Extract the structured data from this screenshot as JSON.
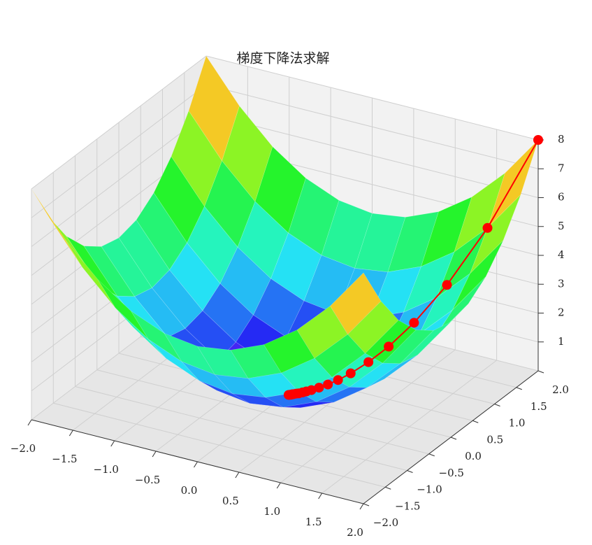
{
  "chart_data": {
    "type": "surface3d",
    "title": "梯度下降法求解",
    "colormap": "rainbow",
    "grid": true,
    "xlim": [
      -2,
      2
    ],
    "ylim": [
      -2,
      2
    ],
    "zlim": [
      0,
      8
    ],
    "xticks": [
      {
        "value": -2,
        "label": "−2.0"
      },
      {
        "value": -1.5,
        "label": "−1.5"
      },
      {
        "value": -1,
        "label": "−1.0"
      },
      {
        "value": -0.5,
        "label": "−0.5"
      },
      {
        "value": 0,
        "label": "0.0"
      },
      0.5,
      {
        "value": 1,
        "label": "1.0"
      },
      1.5,
      {
        "value": 2,
        "label": "2.0"
      }
    ],
    "yticks": [
      {
        "value": -2,
        "label": "−2.0"
      },
      {
        "value": -1.5,
        "label": "−1.5"
      },
      {
        "value": -1,
        "label": "−1.0"
      },
      {
        "value": -0.5,
        "label": "−0.5"
      },
      {
        "value": 0,
        "label": "0.0"
      },
      0.5,
      {
        "value": 1,
        "label": "1.0"
      },
      1.5,
      {
        "value": 2,
        "label": "2.0"
      }
    ],
    "zticks": [
      1,
      2,
      3,
      4,
      5,
      6,
      7,
      8
    ],
    "surface": {
      "x": [
        -2,
        -1.6,
        -1.2,
        -0.8,
        -0.4,
        0,
        0.4,
        0.8,
        1.2,
        1.6,
        2
      ],
      "y": [
        -2,
        -1.6,
        -1.2,
        -0.8,
        -0.4,
        0,
        0.4,
        0.8,
        1.2,
        1.6,
        2
      ],
      "z": [
        [
          8,
          6.56,
          5.44,
          4.64,
          4.16,
          4,
          4.16,
          4.64,
          5.44,
          6.56,
          8
        ],
        [
          6.56,
          5.12,
          4,
          3.2,
          2.72,
          2.56,
          2.72,
          3.2,
          4,
          5.12,
          6.56
        ],
        [
          5.44,
          4,
          2.88,
          2.08,
          1.6,
          1.44,
          1.6,
          2.08,
          2.88,
          4,
          5.44
        ],
        [
          4.64,
          3.2,
          2.08,
          1.28,
          0.8,
          0.64,
          0.8,
          1.28,
          2.08,
          3.2,
          4.64
        ],
        [
          4.16,
          2.72,
          1.6,
          0.8,
          0.32,
          0.16,
          0.32,
          0.8,
          1.6,
          2.72,
          4.16
        ],
        [
          4,
          2.56,
          1.44,
          0.64,
          0.16,
          0,
          0.16,
          0.64,
          1.44,
          2.56,
          4
        ],
        [
          4.16,
          2.72,
          1.6,
          0.8,
          0.32,
          0.16,
          0.32,
          0.8,
          1.6,
          2.72,
          4.16
        ],
        [
          4.64,
          3.2,
          2.08,
          1.28,
          0.8,
          0.64,
          0.8,
          1.28,
          2.08,
          3.2,
          4.64
        ],
        [
          5.44,
          4,
          2.88,
          2.08,
          1.6,
          1.44,
          1.6,
          2.08,
          2.88,
          4,
          5.44
        ],
        [
          6.56,
          5.12,
          4,
          3.2,
          2.72,
          2.56,
          2.72,
          3.2,
          4,
          5.12,
          6.56
        ],
        [
          8,
          6.56,
          5.44,
          4.64,
          4.16,
          4,
          4.16,
          4.64,
          5.44,
          6.56,
          8
        ]
      ]
    },
    "path": {
      "color": "#ff0000",
      "x": [
        2,
        1.6,
        1.28,
        1.02,
        0.82,
        0.66,
        0.52,
        0.42,
        0.34,
        0.27,
        0.21,
        0.17,
        0.14,
        0.11,
        0.09,
        0.07,
        0.06,
        0.05,
        0.04,
        0.03
      ],
      "y": [
        2,
        1.6,
        1.28,
        1.02,
        0.82,
        0.66,
        0.52,
        0.42,
        0.34,
        0.27,
        0.21,
        0.17,
        0.14,
        0.11,
        0.09,
        0.07,
        0.06,
        0.05,
        0.04,
        0.03
      ],
      "z": [
        8,
        5.12,
        3.28,
        2.08,
        1.34,
        0.87,
        0.54,
        0.35,
        0.23,
        0.15,
        0.09,
        0.06,
        0.04,
        0.02,
        0.02,
        0.01,
        0.01,
        0,
        0,
        0
      ]
    }
  }
}
